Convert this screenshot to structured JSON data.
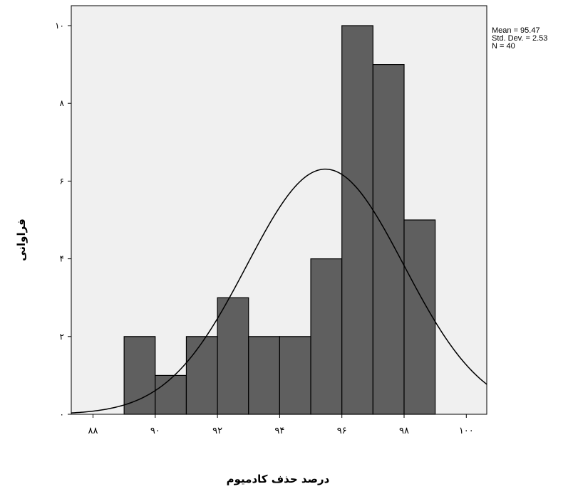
{
  "chart_data": {
    "type": "bar",
    "title": "",
    "xlabel": "درصد حذف کادمیوم",
    "ylabel": "فراوانی",
    "xlim": [
      87.2,
      100.7
    ],
    "ylim": [
      0,
      10.5
    ],
    "bins": [
      {
        "start": 89.0,
        "end": 90.0,
        "value": 2
      },
      {
        "start": 90.0,
        "end": 91.0,
        "value": 1
      },
      {
        "start": 91.0,
        "end": 92.0,
        "value": 2
      },
      {
        "start": 92.0,
        "end": 93.0,
        "value": 3
      },
      {
        "start": 93.0,
        "end": 94.0,
        "value": 2
      },
      {
        "start": 94.0,
        "end": 95.0,
        "value": 2
      },
      {
        "start": 95.0,
        "end": 96.0,
        "value": 4
      },
      {
        "start": 96.0,
        "end": 97.0,
        "value": 10
      },
      {
        "start": 97.0,
        "end": 98.0,
        "value": 9
      },
      {
        "start": 98.0,
        "end": 99.0,
        "value": 5
      }
    ],
    "x_ticks": [
      {
        "value": 88,
        "label": "۸۸"
      },
      {
        "value": 90,
        "label": "۹۰"
      },
      {
        "value": 92,
        "label": "۹۲"
      },
      {
        "value": 94,
        "label": "۹۴"
      },
      {
        "value": 96,
        "label": "۹۶"
      },
      {
        "value": 98,
        "label": "۹۸"
      },
      {
        "value": 100,
        "label": "۱۰۰"
      }
    ],
    "y_ticks": [
      {
        "value": 0,
        "label": "۰"
      },
      {
        "value": 2,
        "label": "۲"
      },
      {
        "value": 4,
        "label": "۴"
      },
      {
        "value": 6,
        "label": "۶"
      },
      {
        "value": 8,
        "label": "۸"
      },
      {
        "value": 10,
        "label": "۱۰"
      }
    ],
    "normal_curve": {
      "mean": 95.47,
      "std_dev": 2.53,
      "n": 40,
      "bin_width": 1
    },
    "grid": false,
    "legend": "none",
    "colors": {
      "bar_fill": "#5f5f5f",
      "bar_stroke": "#000000",
      "plot_background": "#f0f0f0",
      "curve": "#000000"
    }
  },
  "stats": {
    "mean": "Mean = 95.47",
    "std_dev": "Std. Dev. = 2.53",
    "n": "N = 40"
  }
}
